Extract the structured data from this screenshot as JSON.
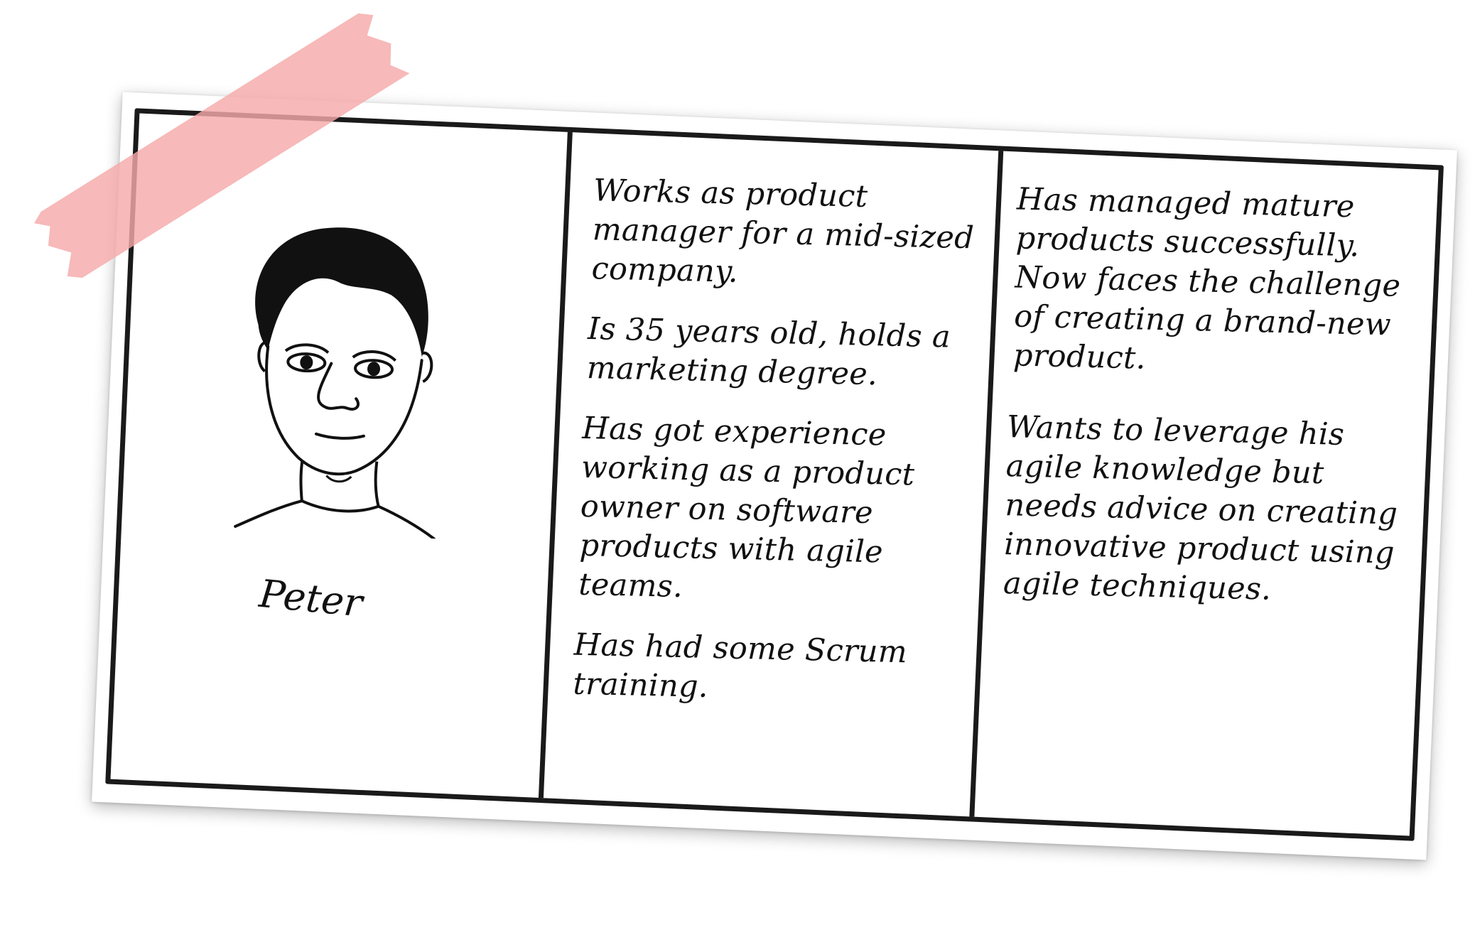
{
  "persona": {
    "name": "Peter",
    "portrait_icon": "hand-drawn-face-icon",
    "middle_column": [
      "Works as product manager for a mid-sized company.",
      "Is 35 years old, holds a marketing degree.",
      "Has got experience working as a product owner on software products with agile teams.",
      "Has had some Scrum training."
    ],
    "right_column": [
      "Has managed mature products successfully. Now faces the challenge of creating a brand-new product.",
      "Wants to leverage his agile knowledge but needs advice on creating innovative product using agile techniques."
    ]
  },
  "colors": {
    "tape": "#f5aaaa",
    "ink": "#111111",
    "paper": "#ffffff"
  }
}
